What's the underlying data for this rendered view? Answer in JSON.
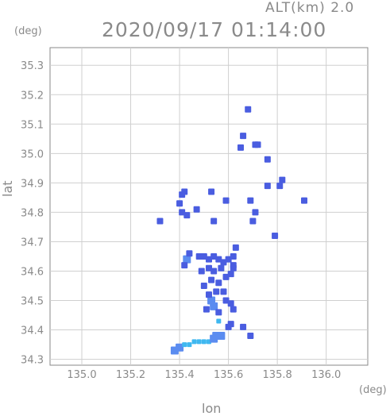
{
  "header": {
    "altitude": "ALT(km) 2.0",
    "datetime": "2020/09/17 01:14:00"
  },
  "axes": {
    "y_unit": "(deg)",
    "x_unit": "(deg)",
    "y_label": "lat",
    "x_label": "lon"
  },
  "chart_data": {
    "type": "heatmap",
    "title": "2020/09/17 01:14:00",
    "xlabel": "lon",
    "ylabel": "lat",
    "xlim": [
      134.87,
      136.17
    ],
    "ylim": [
      34.28,
      35.36
    ],
    "xticks": [
      135.0,
      135.2,
      135.4,
      135.6,
      135.8,
      136.0
    ],
    "xtick_labels": [
      "135.0",
      "135.2",
      "135.4",
      "135.6",
      "135.8",
      "136.0"
    ],
    "yticks": [
      34.3,
      34.4,
      34.5,
      34.6,
      34.7,
      34.8,
      34.9,
      35.0,
      35.1,
      35.2,
      35.3
    ],
    "ytick_labels": [
      "34.3",
      "34.4",
      "34.5",
      "34.6",
      "34.7",
      "34.8",
      "34.9",
      "35.0",
      "35.1",
      "35.2",
      "35.3"
    ],
    "grid": true,
    "colors": {
      "weak": "#4a5de0",
      "moderate": "#5b8cf0",
      "strong": "#3fb8f0"
    },
    "echoes": [
      {
        "lon": 135.53,
        "lat": 34.5,
        "level": "moderate"
      },
      {
        "lon": 135.54,
        "lat": 34.48,
        "level": "moderate"
      },
      {
        "lon": 135.52,
        "lat": 34.52,
        "level": "weak"
      },
      {
        "lon": 135.55,
        "lat": 34.53,
        "level": "weak"
      },
      {
        "lon": 135.51,
        "lat": 34.47,
        "level": "weak"
      },
      {
        "lon": 135.56,
        "lat": 34.46,
        "level": "weak"
      },
      {
        "lon": 135.5,
        "lat": 34.55,
        "level": "weak"
      },
      {
        "lon": 135.53,
        "lat": 34.57,
        "level": "weak"
      },
      {
        "lon": 135.56,
        "lat": 34.56,
        "level": "weak"
      },
      {
        "lon": 135.58,
        "lat": 34.53,
        "level": "weak"
      },
      {
        "lon": 135.59,
        "lat": 34.5,
        "level": "weak"
      },
      {
        "lon": 135.61,
        "lat": 34.49,
        "level": "weak"
      },
      {
        "lon": 135.62,
        "lat": 34.47,
        "level": "weak"
      },
      {
        "lon": 135.49,
        "lat": 34.6,
        "level": "weak"
      },
      {
        "lon": 135.52,
        "lat": 34.61,
        "level": "weak"
      },
      {
        "lon": 135.54,
        "lat": 34.6,
        "level": "weak"
      },
      {
        "lon": 135.57,
        "lat": 34.61,
        "level": "weak"
      },
      {
        "lon": 135.59,
        "lat": 34.58,
        "level": "weak"
      },
      {
        "lon": 135.61,
        "lat": 34.59,
        "level": "weak"
      },
      {
        "lon": 135.62,
        "lat": 34.61,
        "level": "weak"
      },
      {
        "lon": 135.48,
        "lat": 34.65,
        "level": "weak"
      },
      {
        "lon": 135.5,
        "lat": 34.65,
        "level": "weak"
      },
      {
        "lon": 135.52,
        "lat": 34.64,
        "level": "weak"
      },
      {
        "lon": 135.54,
        "lat": 34.65,
        "level": "weak"
      },
      {
        "lon": 135.56,
        "lat": 34.64,
        "level": "weak"
      },
      {
        "lon": 135.58,
        "lat": 34.63,
        "level": "weak"
      },
      {
        "lon": 135.6,
        "lat": 34.64,
        "level": "weak"
      },
      {
        "lon": 135.62,
        "lat": 34.65,
        "level": "weak"
      },
      {
        "lon": 135.63,
        "lat": 34.68,
        "level": "weak"
      },
      {
        "lon": 135.62,
        "lat": 34.62,
        "level": "weak"
      },
      {
        "lon": 135.43,
        "lat": 34.64,
        "level": "moderate"
      },
      {
        "lon": 135.44,
        "lat": 34.66,
        "level": "weak"
      },
      {
        "lon": 135.42,
        "lat": 34.62,
        "level": "weak"
      },
      {
        "lon": 135.41,
        "lat": 34.86,
        "level": "weak"
      },
      {
        "lon": 135.42,
        "lat": 34.87,
        "level": "weak"
      },
      {
        "lon": 135.4,
        "lat": 34.83,
        "level": "weak"
      },
      {
        "lon": 135.41,
        "lat": 34.8,
        "level": "weak"
      },
      {
        "lon": 135.43,
        "lat": 34.79,
        "level": "weak"
      },
      {
        "lon": 135.32,
        "lat": 34.77,
        "level": "weak"
      },
      {
        "lon": 135.47,
        "lat": 34.81,
        "level": "weak"
      },
      {
        "lon": 135.53,
        "lat": 34.87,
        "level": "weak"
      },
      {
        "lon": 135.54,
        "lat": 34.77,
        "level": "weak"
      },
      {
        "lon": 135.59,
        "lat": 34.84,
        "level": "weak"
      },
      {
        "lon": 135.69,
        "lat": 34.84,
        "level": "weak"
      },
      {
        "lon": 135.71,
        "lat": 34.8,
        "level": "weak"
      },
      {
        "lon": 135.7,
        "lat": 34.77,
        "level": "weak"
      },
      {
        "lon": 135.76,
        "lat": 34.89,
        "level": "weak"
      },
      {
        "lon": 135.81,
        "lat": 34.89,
        "level": "weak"
      },
      {
        "lon": 135.82,
        "lat": 34.91,
        "level": "weak"
      },
      {
        "lon": 135.91,
        "lat": 34.84,
        "level": "weak"
      },
      {
        "lon": 135.79,
        "lat": 34.72,
        "level": "weak"
      },
      {
        "lon": 135.66,
        "lat": 35.06,
        "level": "weak"
      },
      {
        "lon": 135.68,
        "lat": 35.15,
        "level": "weak"
      },
      {
        "lon": 135.71,
        "lat": 35.03,
        "level": "weak"
      },
      {
        "lon": 135.72,
        "lat": 35.03,
        "level": "weak"
      },
      {
        "lon": 135.65,
        "lat": 35.02,
        "level": "weak"
      },
      {
        "lon": 135.76,
        "lat": 34.98,
        "level": "weak"
      },
      {
        "lon": 135.6,
        "lat": 34.41,
        "level": "weak"
      },
      {
        "lon": 135.61,
        "lat": 34.42,
        "level": "weak"
      },
      {
        "lon": 135.66,
        "lat": 34.41,
        "level": "weak"
      },
      {
        "lon": 135.69,
        "lat": 34.38,
        "level": "weak"
      },
      {
        "lon": 135.55,
        "lat": 34.38,
        "level": "moderate"
      },
      {
        "lon": 135.57,
        "lat": 34.38,
        "level": "moderate"
      },
      {
        "lon": 135.56,
        "lat": 34.43,
        "level": "strong"
      },
      {
        "lon": 135.38,
        "lat": 34.33,
        "level": "moderate"
      },
      {
        "lon": 135.4,
        "lat": 34.34,
        "level": "moderate"
      },
      {
        "lon": 135.42,
        "lat": 34.35,
        "level": "strong"
      },
      {
        "lon": 135.44,
        "lat": 34.35,
        "level": "strong"
      },
      {
        "lon": 135.46,
        "lat": 34.36,
        "level": "strong"
      },
      {
        "lon": 135.48,
        "lat": 34.36,
        "level": "strong"
      },
      {
        "lon": 135.5,
        "lat": 34.36,
        "level": "strong"
      },
      {
        "lon": 135.52,
        "lat": 34.36,
        "level": "strong"
      },
      {
        "lon": 135.54,
        "lat": 34.37,
        "level": "moderate"
      }
    ]
  }
}
